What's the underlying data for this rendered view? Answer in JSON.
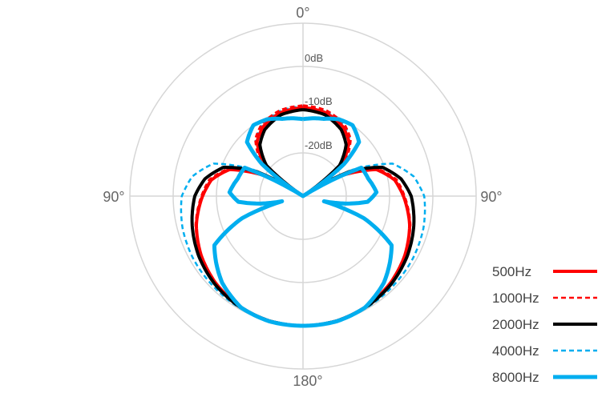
{
  "chart_data": {
    "type": "polar-line",
    "angle_labels": {
      "top": "0°",
      "left": "90°",
      "right": "90°",
      "bottom": "180°"
    },
    "radial_range_db": [
      -30,
      10
    ],
    "radial_ticks_db": [
      -20,
      -10,
      0,
      10
    ],
    "radial_tick_labels": [
      "-20dB",
      "-10dB",
      "0dB"
    ],
    "grid": true,
    "legend_position": "bottom-right",
    "symmetric": true,
    "series": [
      {
        "name": "500Hz",
        "color": "#ff0000",
        "dash": false,
        "angles": [
          0,
          15,
          30,
          40,
          50,
          56,
          62,
          70,
          80,
          90,
          105,
          120,
          135,
          150,
          165,
          180
        ],
        "db": [
          -9.5,
          -10,
          -11.5,
          -13.5,
          -18,
          -30,
          -20,
          -12,
          -8.5,
          -6.8,
          -4.5,
          -2.8,
          -1.5,
          -0.6,
          -0.1,
          0
        ]
      },
      {
        "name": "1000Hz",
        "color": "#ff0000",
        "dash": true,
        "angles": [
          0,
          15,
          30,
          40,
          50,
          56,
          62,
          70,
          80,
          90,
          105,
          120,
          135,
          150,
          165,
          180
        ],
        "db": [
          -9,
          -9.4,
          -10.8,
          -12.8,
          -17,
          -30,
          -19,
          -11.5,
          -8,
          -6.5,
          -4.3,
          -2.7,
          -1.4,
          -0.6,
          -0.1,
          0
        ]
      },
      {
        "name": "2000Hz",
        "color": "#000000",
        "dash": false,
        "angles": [
          0,
          15,
          30,
          40,
          50,
          56,
          62,
          70,
          80,
          90,
          105,
          120,
          135,
          150,
          165,
          180
        ],
        "db": [
          -10,
          -10.5,
          -12.3,
          -14.5,
          -19,
          -30,
          -18,
          -10.5,
          -7,
          -5,
          -3.5,
          -2.2,
          -1.2,
          -0.5,
          -0.1,
          0
        ]
      },
      {
        "name": "4000Hz",
        "color": "#00aeef",
        "dash": true,
        "angles": [
          0,
          15,
          30,
          40,
          50,
          56,
          62,
          70,
          80,
          90,
          105,
          120,
          135,
          150,
          165,
          180
        ],
        "db": [
          -9.2,
          -9.6,
          -11,
          -13,
          -18,
          -30,
          -17,
          -8,
          -4,
          -2,
          -1.2,
          -0.8,
          -0.6,
          -0.3,
          -0.1,
          0
        ]
      },
      {
        "name": "8000Hz",
        "color": "#00aeef",
        "dash": false,
        "angles": [
          0,
          15,
          25,
          35,
          46,
          52,
          58,
          64,
          75,
          87,
          95,
          100,
          104,
          110,
          119,
          137,
          151,
          165,
          180
        ],
        "db": [
          -12.2,
          -11.5,
          -10.4,
          -10,
          -12,
          -18,
          -30,
          -15,
          -14.4,
          -13,
          -15,
          -20,
          -25,
          -15,
          -6.6,
          -2.6,
          -0.5,
          0,
          0
        ]
      }
    ]
  }
}
